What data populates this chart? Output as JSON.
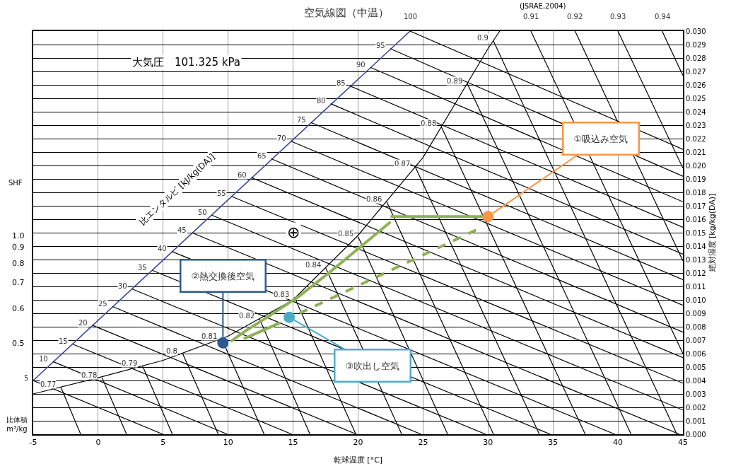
{
  "chart_data": {
    "type": "line",
    "title": "空気線図（中温）",
    "xlabel": "乾球温度 [°C]",
    "ylabel": "絶対湿度 [kg/kg(DA)]",
    "xlim": [
      -5,
      45
    ],
    "xticks": [
      -5,
      0,
      5,
      10,
      15,
      20,
      25,
      30,
      35,
      40,
      45
    ],
    "ylim": [
      0,
      0.03
    ],
    "yticks": [
      {
        "value": 0,
        "label": "0.000"
      },
      {
        "value": 0.001,
        "label": "0.001"
      },
      {
        "value": 0.002,
        "label": "0.002"
      },
      {
        "value": 0.003,
        "label": "0.003"
      },
      {
        "value": 0.004,
        "label": "0.004"
      },
      {
        "value": 0.005,
        "label": "0.005"
      },
      {
        "value": 0.006,
        "label": "0.006"
      },
      {
        "value": 0.007,
        "label": "0.007"
      },
      {
        "value": 0.008,
        "label": "0.008"
      },
      {
        "value": 0.009,
        "label": "0.009"
      },
      {
        "value": 0.01,
        "label": "0.010"
      },
      {
        "value": 0.011,
        "label": "0.011"
      },
      {
        "value": 0.012,
        "label": "0.012"
      },
      {
        "value": 0.013,
        "label": "0.013"
      },
      {
        "value": 0.014,
        "label": "0.014"
      },
      {
        "value": 0.015,
        "label": "0.015"
      },
      {
        "value": 0.016,
        "label": "0.016"
      },
      {
        "value": 0.017,
        "label": "0.017"
      },
      {
        "value": 0.018,
        "label": "0.018"
      },
      {
        "value": 0.019,
        "label": "0.019"
      },
      {
        "value": 0.02,
        "label": "0.020"
      },
      {
        "value": 0.021,
        "label": "0.021"
      },
      {
        "value": 0.022,
        "label": "0.022"
      },
      {
        "value": 0.023,
        "label": "0.023"
      },
      {
        "value": 0.024,
        "label": "0.024"
      },
      {
        "value": 0.025,
        "label": "0.025"
      },
      {
        "value": 0.026,
        "label": "0.026"
      },
      {
        "value": 0.027,
        "label": "0.027"
      },
      {
        "value": 0.028,
        "label": "0.028"
      },
      {
        "value": 0.029,
        "label": "0.029"
      },
      {
        "value": 0.03,
        "label": "0.030"
      }
    ],
    "grid": true,
    "marker": "none",
    "line_style": "solid",
    "series": [
      {
        "color": "#000000",
        "x": [
          -5,
          0,
          5,
          10,
          15,
          20,
          25,
          30,
          30.9
        ],
        "values": [
          0.003,
          0.0042,
          0.0055,
          0.0073,
          0.01,
          0.0148,
          0.0206,
          0.0287,
          0.03
        ]
      },
      {
        "color": "#3b4a9a",
        "x": [
          -5,
          24
        ],
        "values": [
          0.004,
          0.03
        ]
      },
      {
        "name": "5",
        "color": "#000000",
        "x": [
          -5,
          4.97
        ],
        "values": [
          0.004,
          0
        ]
      },
      {
        "name": "10",
        "color": "#000000",
        "x": [
          -3.47,
          9.94
        ],
        "values": [
          0.0054,
          0
        ]
      },
      {
        "name": "15",
        "color": "#000000",
        "x": [
          -1.95,
          14.91
        ],
        "values": [
          0.0067,
          0
        ]
      },
      {
        "name": "20",
        "color": "#000000",
        "x": [
          -0.42,
          19.88
        ],
        "values": [
          0.0081,
          0
        ]
      },
      {
        "name": "25",
        "color": "#000000",
        "x": [
          1.11,
          24.85
        ],
        "values": [
          0.0095,
          0
        ]
      },
      {
        "name": "30",
        "color": "#000000",
        "x": [
          2.63,
          29.82
        ],
        "values": [
          0.0108,
          0
        ]
      },
      {
        "name": "35",
        "color": "#000000",
        "x": [
          4.16,
          34.79
        ],
        "values": [
          0.0122,
          0
        ]
      },
      {
        "name": "40",
        "color": "#000000",
        "x": [
          5.68,
          39.76
        ],
        "values": [
          0.0136,
          0
        ]
      },
      {
        "name": "45",
        "color": "#000000",
        "x": [
          7.21,
          44.73
        ],
        "values": [
          0.015,
          0
        ]
      },
      {
        "name": "50",
        "color": "#000000",
        "x": [
          8.74,
          45
        ],
        "values": [
          0.0163,
          0.0018
        ]
      },
      {
        "name": "55",
        "color": "#000000",
        "x": [
          10.26,
          45
        ],
        "values": [
          0.0177,
          0.0038
        ]
      },
      {
        "name": "60",
        "color": "#000000",
        "x": [
          11.79,
          45
        ],
        "values": [
          0.0191,
          0.0057
        ]
      },
      {
        "name": "65",
        "color": "#000000",
        "x": [
          13.32,
          45
        ],
        "values": [
          0.0205,
          0.0076
        ]
      },
      {
        "name": "70",
        "color": "#000000",
        "x": [
          14.84,
          45
        ],
        "values": [
          0.0218,
          0.0096
        ]
      },
      {
        "name": "75",
        "color": "#000000",
        "x": [
          16.37,
          45
        ],
        "values": [
          0.0232,
          0.0115
        ]
      },
      {
        "name": "80",
        "color": "#000000",
        "x": [
          17.89,
          45
        ],
        "values": [
          0.0246,
          0.0134
        ]
      },
      {
        "name": "85",
        "color": "#000000",
        "x": [
          19.42,
          45
        ],
        "values": [
          0.0259,
          0.0154
        ]
      },
      {
        "name": "90",
        "color": "#000000",
        "x": [
          20.95,
          45
        ],
        "values": [
          0.0273,
          0.0173
        ]
      },
      {
        "name": "95",
        "color": "#000000",
        "x": [
          22.47,
          45
        ],
        "values": [
          0.0287,
          0.0192
        ]
      },
      {
        "name": "100",
        "color": "#000000",
        "x": [
          24.0,
          45
        ],
        "values": [
          0.03,
          0.0212
        ]
      },
      {
        "name": "0.77",
        "color": "#000000",
        "x": [
          -2.87,
          -1.35
        ],
        "values": [
          0.0035,
          0
        ]
      },
      {
        "name": "0.78",
        "color": "#000000",
        "x": [
          0.3,
          2.18
        ],
        "values": [
          0.0042,
          0
        ]
      },
      {
        "name": "0.79",
        "color": "#000000",
        "x": [
          3.4,
          5.71
        ],
        "values": [
          0.0051,
          0
        ]
      },
      {
        "name": "0.8",
        "color": "#000000",
        "x": [
          6.5,
          9.24
        ],
        "values": [
          0.006,
          0
        ]
      },
      {
        "name": "0.81",
        "color": "#000000",
        "x": [
          9.5,
          12.77
        ],
        "values": [
          0.0071,
          0
        ]
      },
      {
        "name": "0.82",
        "color": "#000000",
        "x": [
          12.4,
          16.3
        ],
        "values": [
          0.0086,
          0
        ]
      },
      {
        "name": "0.83",
        "color": "#000000",
        "x": [
          15.1,
          19.83
        ],
        "values": [
          0.0102,
          0
        ]
      },
      {
        "name": "0.84",
        "color": "#000000",
        "x": [
          17.5,
          23.36
        ],
        "values": [
          0.0124,
          0
        ]
      },
      {
        "name": "0.85",
        "color": "#000000",
        "x": [
          20.0,
          26.89
        ],
        "values": [
          0.0147,
          0
        ]
      },
      {
        "name": "0.86",
        "color": "#000000",
        "x": [
          22.2,
          30.42
        ],
        "values": [
          0.0173,
          0
        ]
      },
      {
        "name": "0.87",
        "color": "#000000",
        "x": [
          24.4,
          33.95
        ],
        "values": [
          0.0199,
          0
        ]
      },
      {
        "name": "0.88",
        "color": "#000000",
        "x": [
          26.4,
          37.48
        ],
        "values": [
          0.0229,
          0
        ]
      },
      {
        "name": "0.89",
        "color": "#000000",
        "x": [
          28.4,
          41.01
        ],
        "values": [
          0.0261,
          0
        ]
      },
      {
        "name": "0.9",
        "color": "#000000",
        "x": [
          30.4,
          44.54
        ],
        "values": [
          0.0293,
          0
        ]
      },
      {
        "name": "0.91",
        "color": "#000000",
        "x": [
          33.3,
          45
        ],
        "values": [
          0.03,
          0.006
        ]
      },
      {
        "name": "0.92",
        "color": "#000000",
        "x": [
          36.7,
          45
        ],
        "values": [
          0.03,
          0.0129
        ]
      },
      {
        "name": "0.93",
        "color": "#000000",
        "x": [
          40.0,
          45
        ],
        "values": [
          0.03,
          0.0198
        ]
      },
      {
        "name": "0.94",
        "color": "#000000",
        "x": [
          43.4,
          45
        ],
        "values": [
          0.03,
          0.0267
        ]
      },
      {
        "color": "#8db255",
        "x": [
          30,
          22.5
        ],
        "values": [
          0.0162,
          0.0162
        ]
      },
      {
        "color": "#8db255",
        "x": [
          22.5,
          20.5,
          18,
          15.5,
          13,
          11.2,
          10.2
        ],
        "values": [
          0.0158,
          0.0142,
          0.0122,
          0.0103,
          0.0087,
          0.0076,
          0.0069
        ]
      },
      {
        "color": "#8db255",
        "x": [
          11.2,
          14.0
        ],
        "values": [
          0.0071,
          0.0083
        ]
      },
      {
        "color": "#8db255",
        "line_style": "dashed",
        "x": [
          15.5,
          29.3
        ],
        "values": [
          0.009,
          0.0153
        ]
      },
      {
        "type": "scatter",
        "marker": "circle",
        "color": "#f79646",
        "x": [
          30
        ],
        "values": [
          0.0162
        ]
      },
      {
        "type": "scatter",
        "marker": "circle",
        "color": "#2e5a8a",
        "x": [
          9.6
        ],
        "values": [
          0.0068
        ]
      },
      {
        "type": "scatter",
        "marker": "circle",
        "color": "#4bacc6",
        "x": [
          14.7
        ],
        "values": [
          0.0087
        ]
      }
    ],
    "annotations": [
      "大気圧　101.325 kPa",
      "(JSRAE,2004)",
      "SHF",
      "1.0",
      "0.9",
      "0.8",
      "0.7",
      "0.6",
      "0.5",
      "比体積\nm³/kg",
      {
        "text": "①吸込み空気",
        "x": 30,
        "y": 0.0162
      },
      {
        "text": "②熱交換後空気",
        "x": 9.6,
        "y": 0.0068
      },
      {
        "text": "③吹出し空気",
        "x": 14.7,
        "y": 0.0087
      },
      "⊕",
      "比エンタルピ [kJ/kg(DA)]"
    ]
  }
}
